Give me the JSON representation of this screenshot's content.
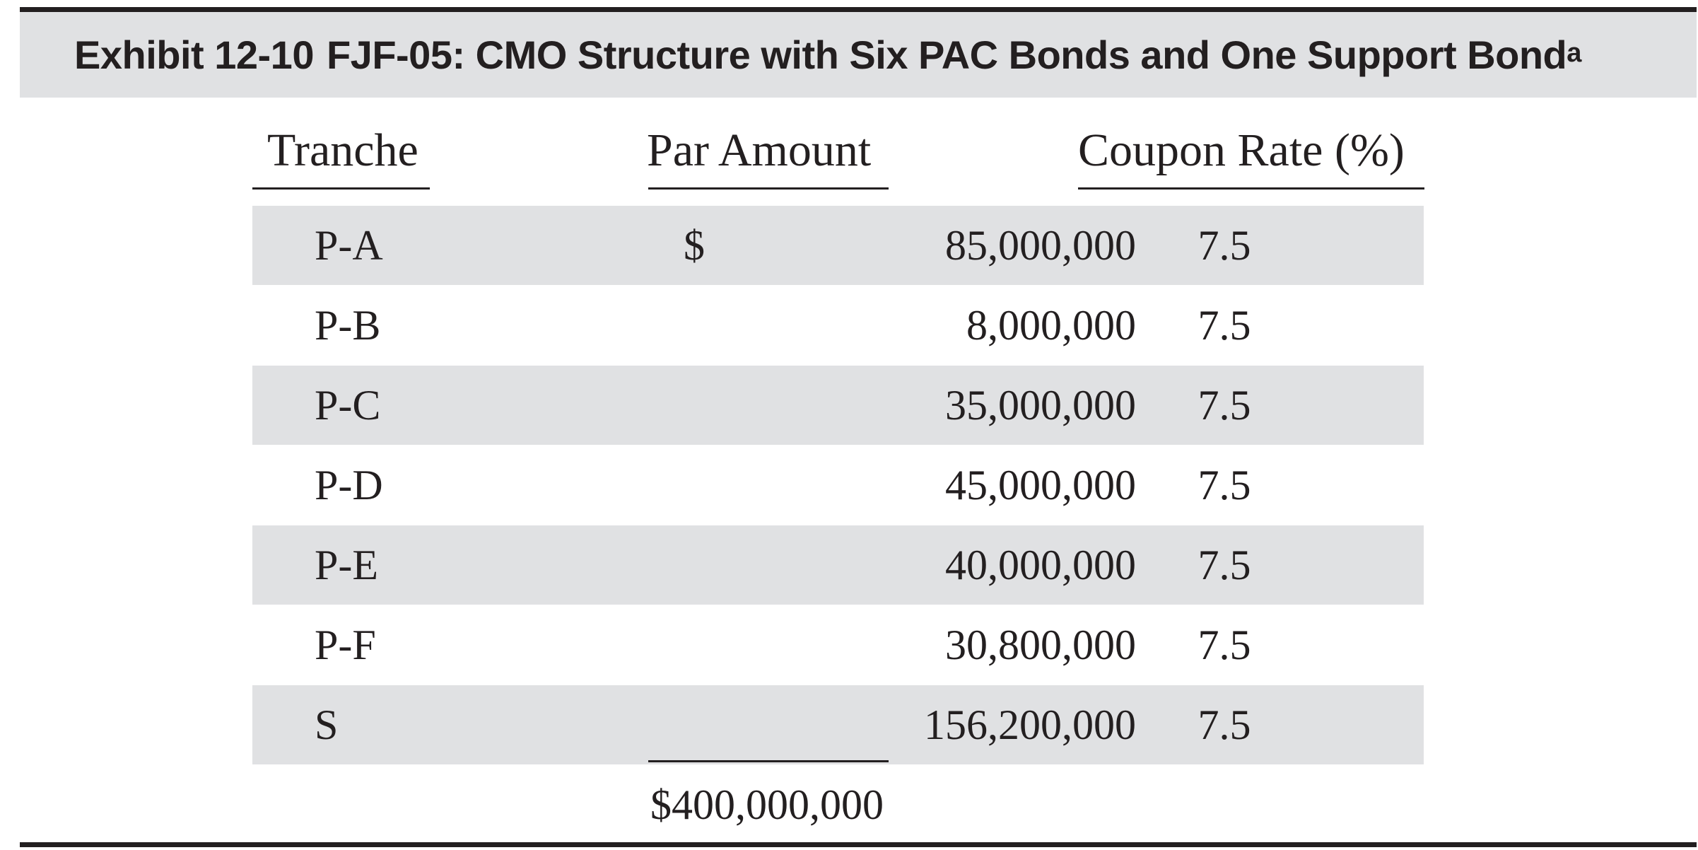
{
  "exhibit": {
    "number": "Exhibit 12-10",
    "title": "FJF-05: CMO Structure with Six PAC Bonds and One Support Bond",
    "footnote_marker": "a"
  },
  "table": {
    "headers": {
      "tranche": "Tranche",
      "par_amount": "Par Amount",
      "coupon_rate": "Coupon Rate (%)"
    },
    "currency_symbol": "$",
    "rows": [
      {
        "tranche": "P-A",
        "par_amount": "85,000,000",
        "coupon_rate": "7.5"
      },
      {
        "tranche": "P-B",
        "par_amount": "8,000,000",
        "coupon_rate": "7.5"
      },
      {
        "tranche": "P-C",
        "par_amount": "35,000,000",
        "coupon_rate": "7.5"
      },
      {
        "tranche": "P-D",
        "par_amount": "45,000,000",
        "coupon_rate": "7.5"
      },
      {
        "tranche": "P-E",
        "par_amount": "40,000,000",
        "coupon_rate": "7.5"
      },
      {
        "tranche": "P-F",
        "par_amount": "30,800,000",
        "coupon_rate": "7.5"
      },
      {
        "tranche": "S",
        "par_amount": "156,200,000",
        "coupon_rate": "7.5"
      }
    ],
    "total_par_amount": "$400,000,000"
  },
  "colors": {
    "shade": "#e0e1e3",
    "text": "#231f20"
  }
}
